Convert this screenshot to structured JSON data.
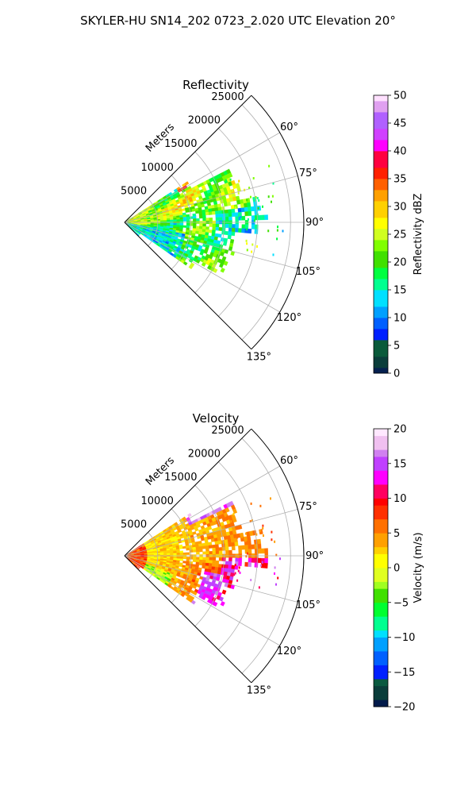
{
  "suptitle": "SKYLER-HU  SN14_202  0723_2.020 UTC Elevation 20°",
  "colors": {
    "reflectivity_stops": [
      "#05204f",
      "#0a3d3a",
      "#0a5a3a",
      "#0020ff",
      "#0060ff",
      "#00a0ff",
      "#00e0ff",
      "#00ff90",
      "#00ff40",
      "#40e000",
      "#80ff00",
      "#d0ff20",
      "#ffff00",
      "#ffd000",
      "#ffa000",
      "#ff6000",
      "#ff2000",
      "#ff0040",
      "#ff00ff",
      "#d040ff",
      "#b060ff",
      "#e0a0f0",
      "#ffe0ff"
    ],
    "velocity_stops": [
      "#021a4a",
      "#0a3d3a",
      "#0a5a40",
      "#0020ff",
      "#0060ff",
      "#00a0ff",
      "#00e0ff",
      "#00ff90",
      "#00ff30",
      "#40e000",
      "#a0ff20",
      "#e0ff20",
      "#ffff00",
      "#ffd000",
      "#ffa000",
      "#ff7000",
      "#ff3000",
      "#ff0000",
      "#ff0060",
      "#ff00ff",
      "#c040ff",
      "#d080f0",
      "#f0c0f0",
      "#ffe8ff"
    ],
    "grid": "#b0b0b0"
  },
  "chart_data": [
    {
      "type": "heatmap",
      "title": "Reflectivity",
      "radial_axis_label": "Meters",
      "radial_ticks": [
        "5000",
        "10000",
        "15000",
        "20000",
        "25000"
      ],
      "azimuth_ticks": [
        "60°",
        "75°",
        "90°",
        "105°",
        "120°",
        "135°"
      ],
      "azimuth_range_deg": [
        45,
        135
      ],
      "range_max_m": 27000,
      "colorbar": {
        "label": "Reflectivity dBZ",
        "ticks": [
          "0",
          "5",
          "10",
          "15",
          "20",
          "25",
          "30",
          "35",
          "40",
          "45",
          "50"
        ],
        "range": [
          0,
          50
        ]
      }
    },
    {
      "type": "heatmap",
      "title": "Velocity",
      "radial_axis_label": "Meters",
      "radial_ticks": [
        "5000",
        "10000",
        "15000",
        "20000",
        "25000"
      ],
      "azimuth_ticks": [
        "60°",
        "75°",
        "90°",
        "105°",
        "120°",
        "135°"
      ],
      "azimuth_range_deg": [
        45,
        135
      ],
      "range_max_m": 27000,
      "colorbar": {
        "label": "Velocity (m/s)",
        "ticks": [
          "−20",
          "−15",
          "−10",
          "−5",
          "0",
          "5",
          "10",
          "15",
          "20"
        ],
        "range": [
          -20,
          20
        ]
      }
    }
  ]
}
